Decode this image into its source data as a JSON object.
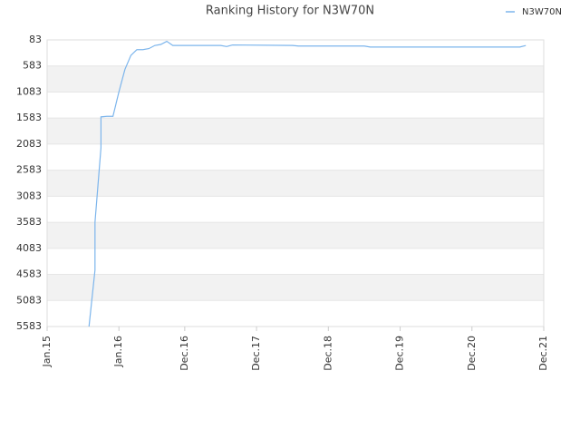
{
  "chart_data": {
    "type": "line",
    "title": "Ranking History for N3W70N",
    "x": [
      "2015-08",
      "2015-09",
      "2015-09",
      "2015-10",
      "2015-10",
      "2015-10",
      "2015-11",
      "2015-12",
      "2016-01",
      "2016-02",
      "2016-03",
      "2016-04",
      "2016-05",
      "2016-06",
      "2016-07",
      "2016-08",
      "2016-09",
      "2016-10",
      "2017-06",
      "2017-07",
      "2017-08",
      "2018-06",
      "2018-07",
      "2019-06",
      "2019-07",
      "2020-12",
      "2021-08",
      "2021-09"
    ],
    "series": [
      {
        "name": "N3W70N",
        "color": "#7cb5ec",
        "values": [
          5583,
          4500,
          3583,
          2150,
          1900,
          1560,
          1550,
          1550,
          1080,
          650,
          380,
          270,
          270,
          250,
          190,
          170,
          110,
          190,
          190,
          210,
          180,
          190,
          200,
          200,
          220,
          220,
          220,
          190
        ]
      }
    ],
    "xlim": [
      "2015-01",
      "2021-12"
    ],
    "xticks": [
      {
        "value": "2015-01",
        "label": "Jan.15"
      },
      {
        "value": "2016-01",
        "label": "Jan.16"
      },
      {
        "value": "2016-12",
        "label": "Dec.16"
      },
      {
        "value": "2017-12",
        "label": "Dec.17"
      },
      {
        "value": "2018-12",
        "label": "Dec.18"
      },
      {
        "value": "2019-12",
        "label": "Dec.19"
      },
      {
        "value": "2020-12",
        "label": "Dec.20"
      },
      {
        "value": "2021-12",
        "label": "Dec.21"
      }
    ],
    "ylim": [
      83,
      5583
    ],
    "y_inverted": true,
    "yticks": [
      83,
      583,
      1083,
      1583,
      2083,
      2583,
      3083,
      3583,
      4083,
      4583,
      5083,
      5583
    ],
    "grid": true,
    "legend": "top-right"
  }
}
